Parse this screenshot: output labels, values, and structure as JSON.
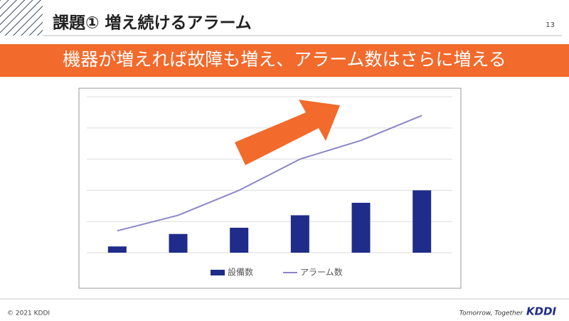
{
  "header": {
    "title": "課題① 増え続けるアラーム",
    "page_number": "13"
  },
  "banner": "機器が増えれば故障も増え、アラーム数はさらに増える",
  "footer": {
    "copyright": "© 2021 KDDI",
    "tagline": "Tomorrow, Together",
    "logo": "KDDI"
  },
  "chart_data": {
    "type": "bar",
    "categories": [
      null,
      null,
      null,
      null,
      null,
      null
    ],
    "series": [
      {
        "name": "設備数",
        "type": "bar",
        "color": "#1f2c8a",
        "values": [
          0.2,
          0.6,
          0.8,
          1.2,
          1.6,
          2.0
        ]
      },
      {
        "name": "アラーム数",
        "type": "line",
        "color": "#8b86c9",
        "values": [
          0.7,
          1.2,
          2.0,
          3.0,
          3.6,
          4.4
        ]
      }
    ],
    "ylim": [
      0,
      5
    ],
    "yticks": [
      0,
      1,
      2,
      3,
      4,
      5
    ],
    "grid": true,
    "legend": "bottom"
  }
}
